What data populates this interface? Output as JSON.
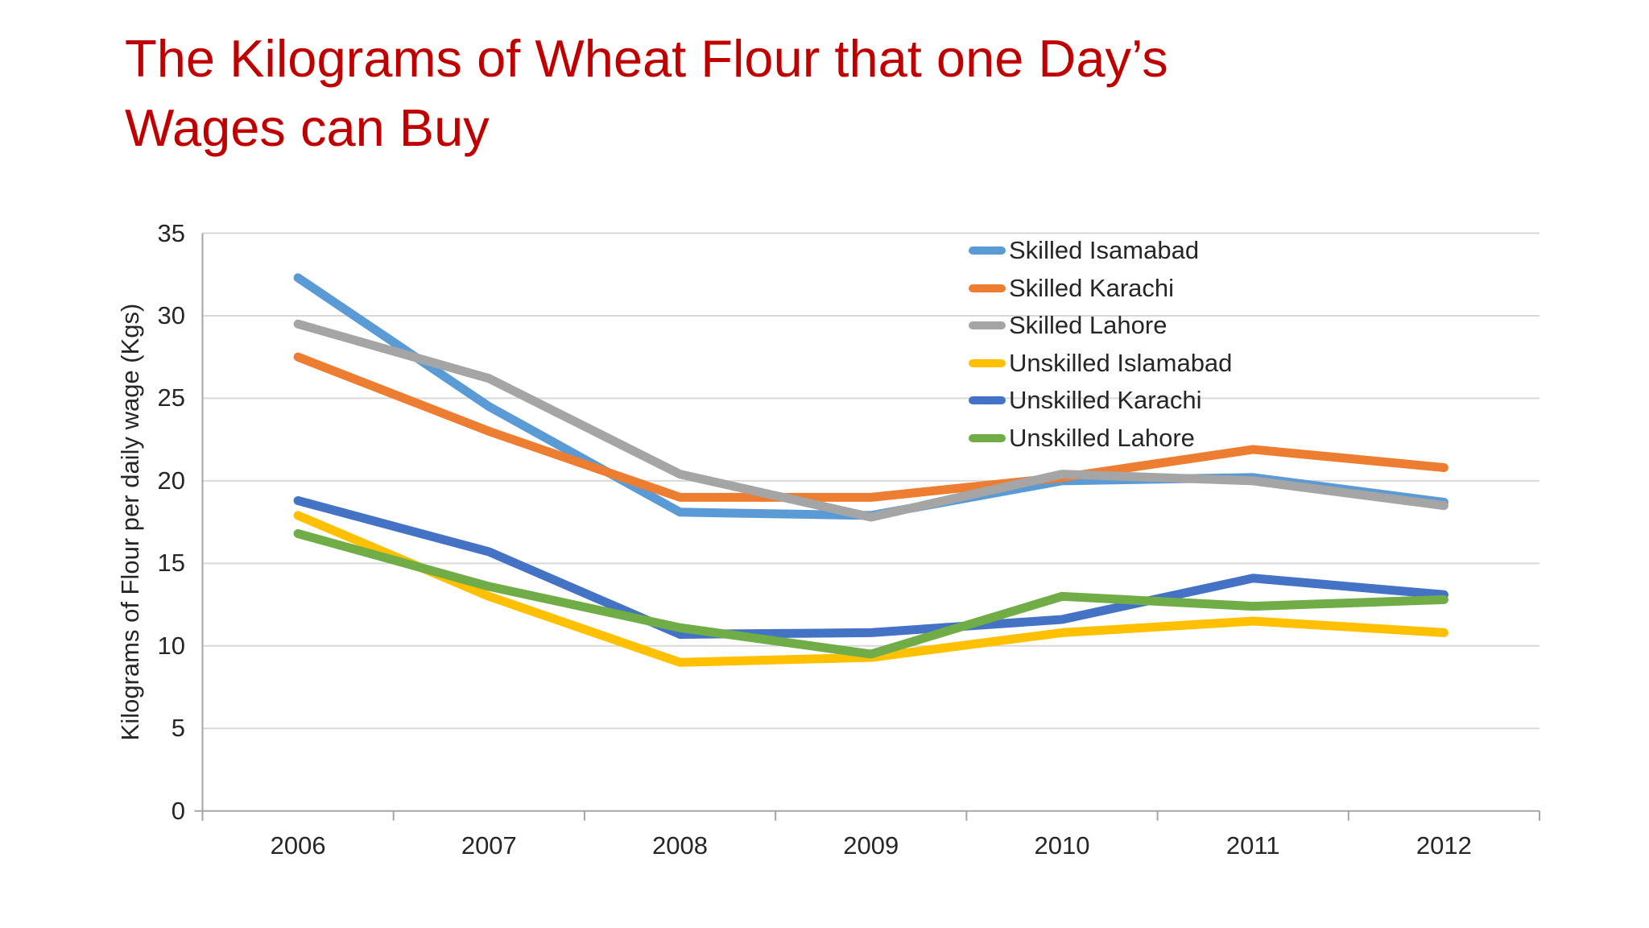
{
  "slide_title_lines": [
    "The Kilograms of Wheat Flour that one Day’s",
    "Wages can Buy"
  ],
  "colors": {
    "title": "#C00000",
    "text": "#262626",
    "gridline": "#D9D9D9",
    "axis": "#A6A6A6",
    "background": "#FFFFFF"
  },
  "chart_data": {
    "type": "line",
    "title": "The Kilograms of Wheat Flour that one Day’s Wages can Buy",
    "ylabel": "Kilograms of Flour per daily wage (Kgs)",
    "xlabel": "",
    "x": [
      "2006",
      "2007",
      "2008",
      "2009",
      "2010",
      "2011",
      "2012"
    ],
    "ylim": [
      0,
      35
    ],
    "ytick_step": 5,
    "yticks": [
      0,
      5,
      10,
      15,
      20,
      25,
      30,
      35
    ],
    "grid": true,
    "legend_position": "inside-top-right",
    "series": [
      {
        "name": "Skilled Isamabad",
        "color": "#5B9BD5",
        "values": [
          32.3,
          24.5,
          18.1,
          17.9,
          20.0,
          20.2,
          18.7
        ]
      },
      {
        "name": "Skilled Karachi",
        "color": "#ED7D31",
        "values": [
          27.5,
          23.0,
          19.0,
          19.0,
          20.2,
          21.9,
          20.8
        ]
      },
      {
        "name": "Skilled Lahore",
        "color": "#A5A5A5",
        "values": [
          29.5,
          26.2,
          20.4,
          17.8,
          20.4,
          20.0,
          18.5
        ]
      },
      {
        "name": "Unskilled Islamabad",
        "color": "#FFC000",
        "values": [
          17.9,
          13.0,
          9.0,
          9.3,
          10.8,
          11.5,
          10.8
        ]
      },
      {
        "name": "Unskilled Karachi",
        "color": "#4472C4",
        "values": [
          18.8,
          15.7,
          10.7,
          10.8,
          11.6,
          14.1,
          13.1
        ]
      },
      {
        "name": "Unskilled Lahore",
        "color": "#70AD47",
        "values": [
          16.8,
          13.6,
          11.1,
          9.5,
          13.0,
          12.4,
          12.8
        ]
      }
    ]
  }
}
